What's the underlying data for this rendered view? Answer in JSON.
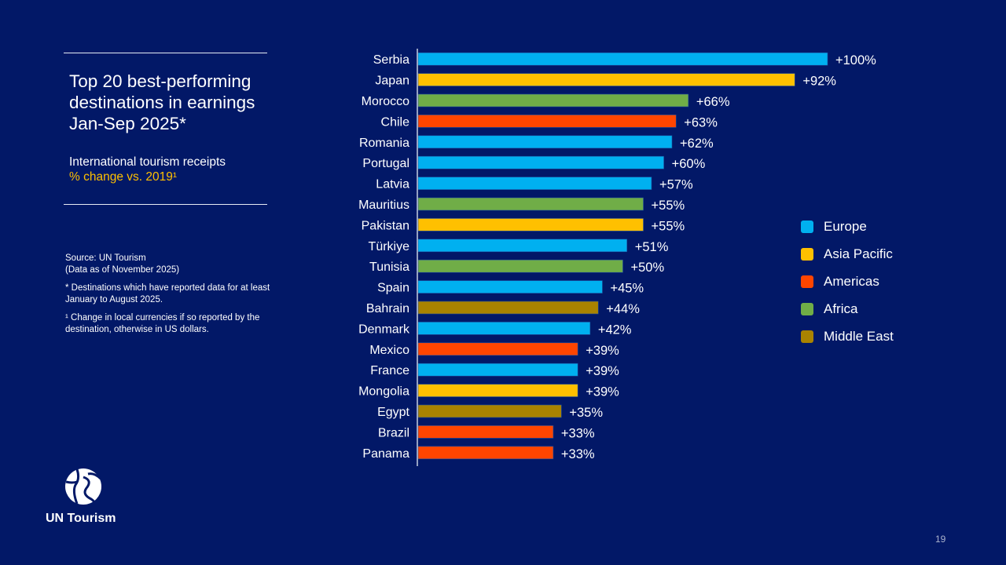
{
  "header": {
    "title_lines": [
      "Top 20 best-performing",
      "destinations in earnings",
      "Jan-Sep 2025*"
    ],
    "subtitle_line1": "International tourism receipts",
    "subtitle_line2": "% change vs. 2019¹"
  },
  "notes": {
    "source": "Source: UN Tourism",
    "data_as_of": "(Data as of November 2025)",
    "footnote_star": "* Destinations which have reported data for at least January to August 2025.",
    "footnote_one": "¹ Change in local currencies if so reported by the destination, otherwise in US dollars."
  },
  "logo": {
    "icon": "un-tourism-globe-icon",
    "text": "UN Tourism"
  },
  "page_number": "19",
  "colors": {
    "background": "#021867",
    "Europe": "#00b0f0",
    "Asia Pacific": "#ffc000",
    "Americas": "#ff4500",
    "Africa": "#70ad47",
    "Middle East": "#a98300"
  },
  "chart_data": {
    "type": "bar",
    "orientation": "horizontal",
    "title": "Top 20 best-performing destinations in earnings Jan-Sep 2025*",
    "subtitle": "International tourism receipts % change vs. 2019",
    "categories": [
      "Serbia",
      "Japan",
      "Morocco",
      "Chile",
      "Romania",
      "Portugal",
      "Latvia",
      "Mauritius",
      "Pakistan",
      "Türkiye",
      "Tunisia",
      "Spain",
      "Bahrain",
      "Denmark",
      "Mexico",
      "France",
      "Mongolia",
      "Egypt",
      "Brazil",
      "Panama"
    ],
    "values": [
      100,
      92,
      66,
      63,
      62,
      60,
      57,
      55,
      55,
      51,
      50,
      45,
      44,
      42,
      39,
      39,
      39,
      35,
      33,
      33
    ],
    "labels": [
      "+100%",
      "+92%",
      "+66%",
      "+63%",
      "+62%",
      "+60%",
      "+57%",
      "+55%",
      "+55%",
      "+51%",
      "+50%",
      "+45%",
      "+44%",
      "+42%",
      "+39%",
      "+39%",
      "+39%",
      "+35%",
      "+33%",
      "+33%"
    ],
    "regions": [
      "Europe",
      "Asia Pacific",
      "Africa",
      "Americas",
      "Europe",
      "Europe",
      "Europe",
      "Africa",
      "Asia Pacific",
      "Europe",
      "Africa",
      "Europe",
      "Middle East",
      "Europe",
      "Americas",
      "Europe",
      "Asia Pacific",
      "Middle East",
      "Americas",
      "Americas"
    ],
    "legend": [
      "Europe",
      "Asia Pacific",
      "Americas",
      "Africa",
      "Middle East"
    ],
    "legend_position": "right",
    "xlabel": "",
    "ylabel": "",
    "xlim": [
      0,
      100
    ],
    "grid": false
  }
}
